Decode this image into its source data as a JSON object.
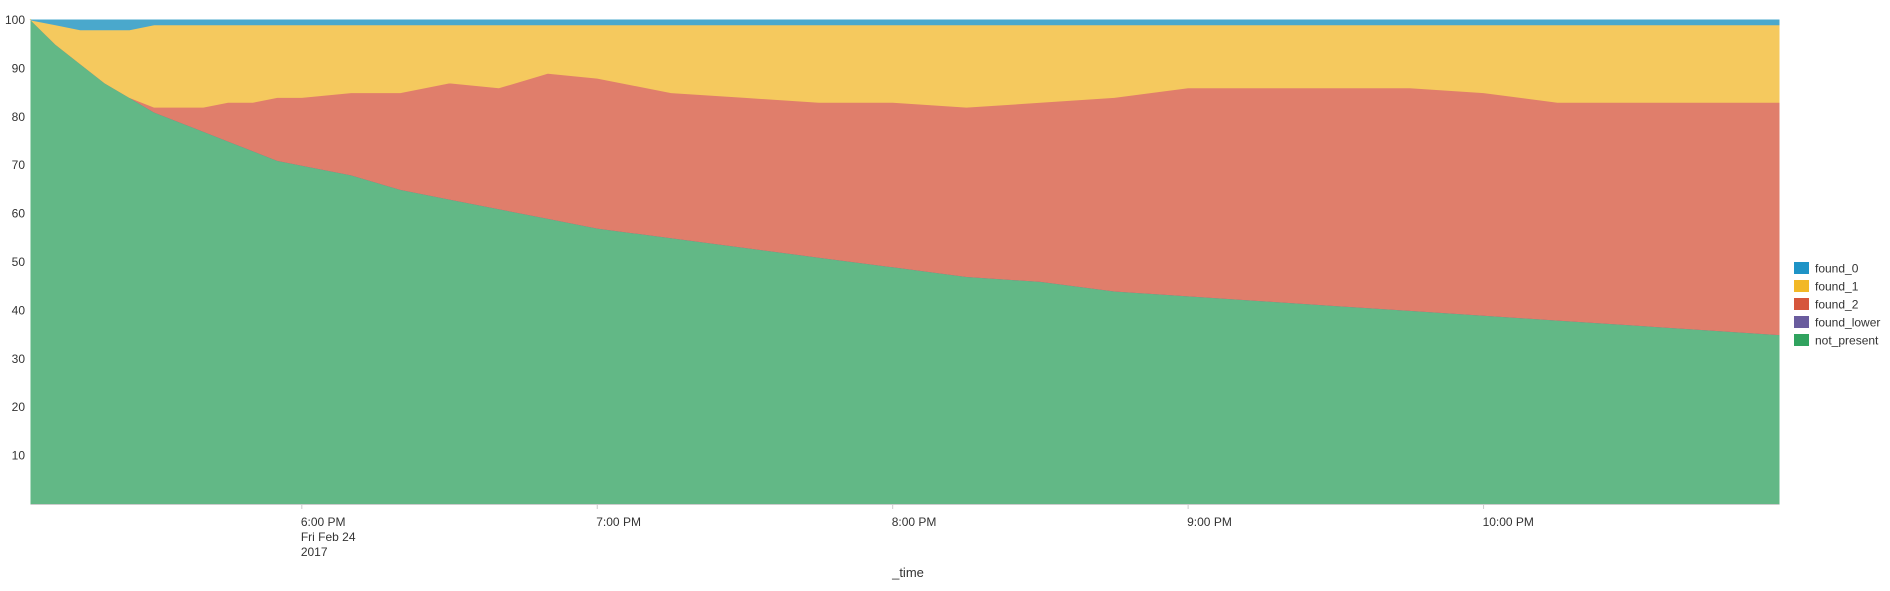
{
  "chart_data": {
    "type": "area",
    "stacked": true,
    "xlabel": "_time",
    "ylabel": "",
    "ylim": [
      0,
      100
    ],
    "x_range": [
      "17:05",
      "23:00"
    ],
    "y_ticks": [
      10,
      20,
      30,
      40,
      50,
      60,
      70,
      80,
      90,
      100
    ],
    "x_ticks": [
      {
        "time": "18:00",
        "lines": [
          "6:00 PM",
          "Fri Feb 24",
          "2017"
        ]
      },
      {
        "time": "19:00",
        "lines": [
          "7:00 PM"
        ]
      },
      {
        "time": "20:00",
        "lines": [
          "8:00 PM"
        ]
      },
      {
        "time": "21:00",
        "lines": [
          "9:00 PM"
        ]
      },
      {
        "time": "22:00",
        "lines": [
          "10:00 PM"
        ]
      }
    ],
    "legend_position": "right",
    "x": [
      "17:05",
      "17:10",
      "17:15",
      "17:20",
      "17:25",
      "17:30",
      "17:35",
      "17:40",
      "17:45",
      "17:50",
      "17:55",
      "18:00",
      "18:10",
      "18:20",
      "18:30",
      "18:40",
      "18:50",
      "19:00",
      "19:15",
      "19:30",
      "19:45",
      "20:00",
      "20:15",
      "20:30",
      "20:45",
      "21:00",
      "21:15",
      "21:30",
      "21:45",
      "22:00",
      "22:15",
      "22:30",
      "22:45",
      "23:00"
    ],
    "series": [
      {
        "name": "not_present",
        "color": "#62b886",
        "values": [
          100,
          95,
          91,
          87,
          84,
          81,
          79,
          77,
          75,
          73,
          71,
          70,
          68,
          65,
          63,
          61,
          59,
          57,
          55,
          53,
          51,
          49,
          47,
          46,
          44,
          43,
          42,
          41,
          40,
          39,
          38,
          37,
          36,
          35
        ]
      },
      {
        "name": "found_lower",
        "color": "#5a4f9c",
        "values": [
          0,
          0,
          0,
          0,
          0,
          0,
          0,
          0,
          0,
          0,
          0,
          0,
          0,
          0,
          0,
          0,
          0,
          0,
          0,
          0,
          0,
          0,
          0,
          0,
          0,
          0,
          0,
          0,
          0,
          0,
          0,
          0,
          0,
          0
        ]
      },
      {
        "name": "found_2",
        "color": "#e07e6b",
        "values": [
          0,
          0,
          0,
          0,
          0,
          1,
          3,
          5,
          8,
          10,
          13,
          14,
          17,
          20,
          24,
          25,
          30,
          31,
          30,
          31,
          32,
          34,
          35,
          37,
          40,
          43,
          44,
          45,
          46,
          46,
          45,
          46,
          47,
          48
        ]
      },
      {
        "name": "found_1",
        "color": "#f5c95e",
        "values": [
          0,
          4,
          7,
          11,
          14,
          17,
          17,
          17,
          16,
          16,
          15,
          15,
          14,
          14,
          12,
          13,
          10,
          11,
          14,
          15,
          16,
          16,
          17,
          16,
          15,
          13,
          13,
          13,
          13,
          14,
          16,
          16,
          16,
          16
        ]
      },
      {
        "name": "found_0",
        "color": "#4aa8cc",
        "values": [
          0,
          1,
          2,
          2,
          2,
          1,
          1,
          1,
          1,
          1,
          1,
          1,
          1,
          1,
          1,
          1,
          1,
          1,
          1,
          1,
          1,
          1,
          1,
          1,
          1,
          1,
          1,
          1,
          1,
          1,
          1,
          1,
          1,
          1
        ]
      }
    ],
    "legend": [
      {
        "name": "found_0",
        "color": "#1e93c6"
      },
      {
        "name": "found_1",
        "color": "#f2b827"
      },
      {
        "name": "found_2",
        "color": "#d6563c"
      },
      {
        "name": "found_lower",
        "color": "#6a5c9e"
      },
      {
        "name": "not_present",
        "color": "#31a35f"
      }
    ]
  }
}
